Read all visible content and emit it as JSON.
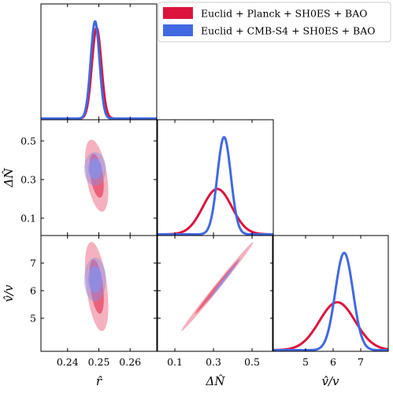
{
  "chart_data": {
    "type": "corner-plot",
    "legend": {
      "placement": "top-right",
      "entries": [
        {
          "label": "Euclid + Planck + SH0ES + BAO",
          "color": "#dc143c"
        },
        {
          "label": "Euclid + CMB-S4 + SH0ES + BAO",
          "color": "#4169e1"
        }
      ]
    },
    "parameters": [
      {
        "label": "r̂",
        "range": [
          0.2315,
          0.2685
        ],
        "ticks": [
          "0.24",
          "0.25",
          "0.26"
        ],
        "tick_values": [
          0.24,
          0.25,
          0.26
        ]
      },
      {
        "label": "ΔN̂",
        "range": [
          0.01,
          0.61
        ],
        "ticks": [
          "0.1",
          "0.3",
          "0.5"
        ],
        "tick_values": [
          0.1,
          0.3,
          0.5
        ],
        "x_ticks": [
          "0.1",
          "0.3",
          "0.5"
        ]
      },
      {
        "label": "v̂/v",
        "range": [
          3.8,
          8.0
        ],
        "ticks": [
          "5",
          "6",
          "7"
        ],
        "tick_values": [
          5,
          6,
          7
        ]
      }
    ],
    "series": [
      {
        "name": "Euclid + Planck + SH0ES + BAO",
        "color": "#dc143c",
        "fill": "#e8546f",
        "means": [
          0.2493,
          0.32,
          6.15
        ],
        "sigmas": [
          0.0015,
          0.075,
          0.65
        ],
        "correlations": {
          "r_dN": -0.45,
          "r_v": -0.45,
          "dN_v": 0.995
        }
      },
      {
        "name": "Euclid + CMB-S4 + SH0ES + BAO",
        "color": "#4169e1",
        "fill": "#8a8fe8",
        "means": [
          0.2488,
          0.355,
          6.4
        ],
        "sigmas": [
          0.0014,
          0.035,
          0.32
        ],
        "correlations": {
          "r_dN": 0.0,
          "r_v": 0.0,
          "dN_v": 0.995
        }
      }
    ]
  }
}
